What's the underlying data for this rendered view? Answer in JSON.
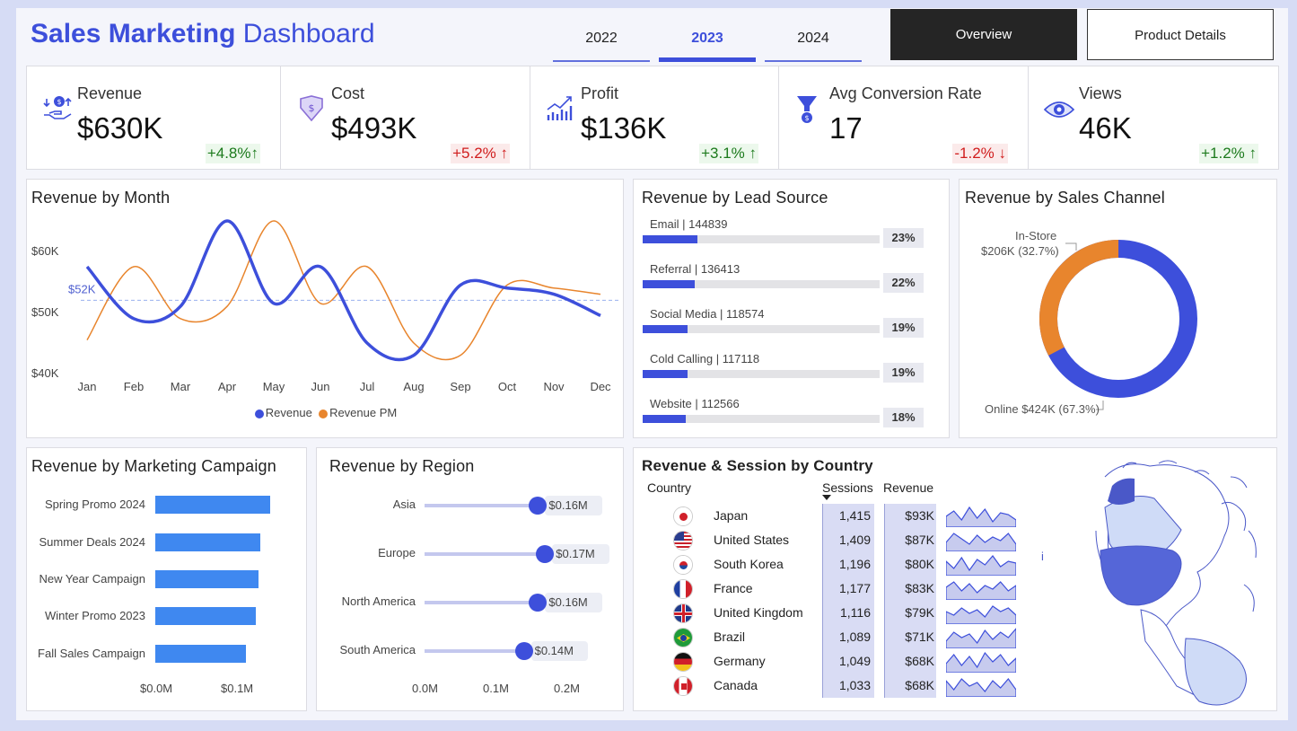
{
  "header": {
    "title_bold": "Sales Marketing",
    "title_normal": "Dashboard",
    "years": [
      "2022",
      "2023",
      "2024"
    ],
    "active_year": "2023",
    "nav_overview": "Overview",
    "nav_product": "Product Details"
  },
  "kpis": [
    {
      "label": "Revenue",
      "value": "$630K",
      "change": "+4.8%↑",
      "direction": "up",
      "icon": "revenue-hand-coin-icon"
    },
    {
      "label": "Cost",
      "value": "$493K",
      "change": "+5.2% ↑",
      "direction": "down",
      "icon": "cost-tag-icon"
    },
    {
      "label": "Profit",
      "value": "$136K",
      "change": "+3.1% ↑",
      "direction": "up",
      "icon": "profit-growth-icon"
    },
    {
      "label": "Avg Conversion Rate",
      "value": "17",
      "change": "-1.2% ↓",
      "direction": "down",
      "icon": "conversion-funnel-icon"
    },
    {
      "label": "Views",
      "value": "46K",
      "change": "+1.2% ↑",
      "direction": "up",
      "icon": "views-eye-icon"
    }
  ],
  "revenue_by_month": {
    "title": "Revenue by Month",
    "avg_label": "$52K",
    "legend_revenue": "Revenue",
    "legend_revenue_pm": "Revenue PM"
  },
  "lead_source": {
    "title": "Revenue by Lead Source",
    "rows": [
      {
        "label": "Email | 144839",
        "pct_text": "23%",
        "pct": 23
      },
      {
        "label": "Referral | 136413",
        "pct_text": "22%",
        "pct": 22
      },
      {
        "label": "Social Media | 118574",
        "pct_text": "19%",
        "pct": 19
      },
      {
        "label": "Cold Calling | 117118",
        "pct_text": "19%",
        "pct": 19
      },
      {
        "label": "Website | 112566",
        "pct_text": "18%",
        "pct": 18
      }
    ]
  },
  "sales_channel": {
    "title": "Revenue by Sales Channel",
    "instore_label": "In-Store",
    "instore_value": "$206K (32.7%)",
    "online_label": "Online $424K (67.3%)"
  },
  "campaign": {
    "title": "Revenue by Marketing Campaign",
    "axis": [
      "$0.0M",
      "$0.1M"
    ]
  },
  "region": {
    "title": "Revenue by Region",
    "rows": [
      {
        "label": "Asia",
        "value_text": "$0.16M"
      },
      {
        "label": "Europe",
        "value_text": "$0.17M"
      },
      {
        "label": "North America",
        "value_text": "$0.16M"
      },
      {
        "label": "South America",
        "value_text": "$0.14M"
      }
    ],
    "axis": [
      "0.0M",
      "0.1M",
      "0.2M"
    ]
  },
  "country": {
    "title": "Revenue & Session by Country",
    "col_country": "Country",
    "col_sessions": "Sessions",
    "col_revenue": "Revenue",
    "cursor_glyph": "i",
    "rows": [
      {
        "name": "Japan",
        "sessions": "1,415",
        "revenue": "$93K",
        "flag": "japan-flag-icon"
      },
      {
        "name": "United States",
        "sessions": "1,409",
        "revenue": "$87K",
        "flag": "usa-flag-icon"
      },
      {
        "name": "South Korea",
        "sessions": "1,196",
        "revenue": "$80K",
        "flag": "south-korea-flag-icon"
      },
      {
        "name": "France",
        "sessions": "1,177",
        "revenue": "$83K",
        "flag": "france-flag-icon"
      },
      {
        "name": "United Kingdom",
        "sessions": "1,116",
        "revenue": "$79K",
        "flag": "uk-flag-icon"
      },
      {
        "name": "Brazil",
        "sessions": "1,089",
        "revenue": "$71K",
        "flag": "brazil-flag-icon"
      },
      {
        "name": "Germany",
        "sessions": "1,049",
        "revenue": "$68K",
        "flag": "germany-flag-icon"
      },
      {
        "name": "Canada",
        "sessions": "1,033",
        "revenue": "$68K",
        "flag": "canada-flag-icon"
      }
    ]
  },
  "colors": {
    "accent": "#3d4fdb",
    "secondary": "#e8852d",
    "bar_blue": "#3f88f0",
    "up": "#1c7a1c",
    "down": "#d01c1c"
  },
  "chart_data": [
    {
      "type": "line",
      "title": "Revenue by Month",
      "categories": [
        "Jan",
        "Feb",
        "Mar",
        "Apr",
        "May",
        "Jun",
        "Jul",
        "Aug",
        "Sep",
        "Oct",
        "Nov",
        "Dec"
      ],
      "series": [
        {
          "name": "Revenue",
          "values": [
            57.5,
            49,
            51,
            65,
            51.5,
            57.5,
            45,
            43,
            54.5,
            54,
            53,
            49.5
          ]
        },
        {
          "name": "Revenue PM",
          "values": [
            45.5,
            57.5,
            49,
            51,
            65,
            51.5,
            57.5,
            45,
            43,
            54.5,
            54,
            53
          ]
        }
      ],
      "y_ticks": [
        "$40K",
        "$50K",
        "$60K"
      ],
      "ylim": [
        40,
        60
      ],
      "reference_line": 52,
      "legend": "bottom-center"
    },
    {
      "type": "bar",
      "title": "Revenue by Lead Source",
      "categories": [
        "Email",
        "Referral",
        "Social Media",
        "Cold Calling",
        "Website"
      ],
      "values": [
        144839,
        136413,
        118574,
        117118,
        112566
      ]
    },
    {
      "type": "pie",
      "title": "Revenue by Sales Channel",
      "categories": [
        "In-Store",
        "Online"
      ],
      "values": [
        206,
        424
      ],
      "percent": [
        32.7,
        67.3
      ]
    },
    {
      "type": "bar",
      "title": "Revenue by Marketing Campaign",
      "categories": [
        "Spring Promo 2024",
        "Summer Deals 2024",
        "New Year Campaign",
        "Winter Promo 2023",
        "Fall Sales Campaign"
      ],
      "values": [
        0.14,
        0.128,
        0.126,
        0.122,
        0.111
      ],
      "xlim": [
        0,
        0.14
      ]
    },
    {
      "type": "scatter",
      "title": "Revenue by Region",
      "categories": [
        "Asia",
        "Europe",
        "North America",
        "South America"
      ],
      "values": [
        0.16,
        0.17,
        0.16,
        0.14
      ],
      "xlim": [
        0,
        0.2
      ]
    },
    {
      "type": "table",
      "title": "Revenue & Session by Country",
      "categories": [
        "Japan",
        "United States",
        "South Korea",
        "France",
        "United Kingdom",
        "Brazil",
        "Germany",
        "Canada"
      ],
      "series": [
        {
          "name": "Sessions",
          "values": [
            1415,
            1409,
            1196,
            1177,
            1116,
            1089,
            1049,
            1033
          ]
        },
        {
          "name": "Revenue",
          "values": [
            93,
            87,
            80,
            83,
            79,
            71,
            68,
            68
          ]
        }
      ]
    }
  ]
}
